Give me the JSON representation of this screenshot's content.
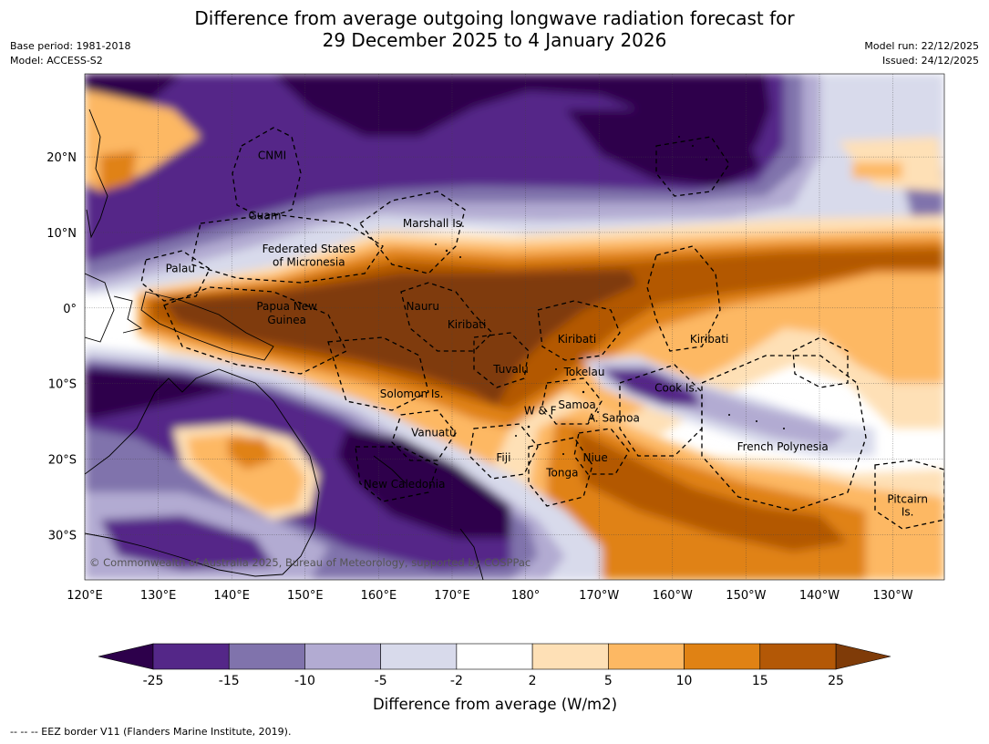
{
  "header": {
    "title_line1": "Difference from average outgoing longwave radiation forecast for",
    "title_line2": "29 December 2025 to 4 January 2026",
    "base_period": "Base period: 1981-2018",
    "model": "Model: ACCESS-S2",
    "model_run": "Model run: 22/12/2025",
    "issued": "Issued: 24/12/2025"
  },
  "map": {
    "lon_ticks": [
      "120°E",
      "130°E",
      "140°E",
      "150°E",
      "160°E",
      "170°E",
      "180°",
      "170°W",
      "160°W",
      "150°W",
      "140°W",
      "130°W"
    ],
    "lon_values": [
      120,
      130,
      140,
      150,
      160,
      170,
      180,
      190,
      200,
      210,
      220,
      230
    ],
    "lat_ticks": [
      "20°N",
      "10°N",
      "0°",
      "10°S",
      "20°S",
      "30°S"
    ],
    "lat_values": [
      20,
      10,
      0,
      -10,
      -20,
      -30
    ],
    "lon_range": [
      120,
      237
    ],
    "lat_range": [
      -36,
      31
    ],
    "grid": true,
    "copyright": "© Commonwealth of Australia 2025, Bureau of Meteorology, supported by COSPPac",
    "regions": [
      {
        "name": "CNMI",
        "lon": 145.5,
        "lat": 20.2
      },
      {
        "name": "Guam",
        "lon": 144.5,
        "lat": 12.2
      },
      {
        "name": "Marshall Is.",
        "lon": 167.5,
        "lat": 11.2
      },
      {
        "name": "Federated States",
        "lon": 150.5,
        "lat": 7.8
      },
      {
        "name": "of Micronesia",
        "lon": 150.5,
        "lat": 6.1
      },
      {
        "name": "Palau",
        "lon": 133,
        "lat": 5.2
      },
      {
        "name": "Papua New",
        "lon": 147.5,
        "lat": 0.2
      },
      {
        "name": "Guinea",
        "lon": 147.5,
        "lat": -1.6
      },
      {
        "name": "Nauru",
        "lon": 166,
        "lat": 0.2
      },
      {
        "name": "Kiribati",
        "lon": 172,
        "lat": -2.2
      },
      {
        "name": "Kiribati",
        "lon": 187,
        "lat": -4.1
      },
      {
        "name": "Kiribati",
        "lon": 205,
        "lat": -4.1
      },
      {
        "name": "Tuvalu",
        "lon": 178,
        "lat": -8.1
      },
      {
        "name": "Tokelau",
        "lon": 188,
        "lat": -8.5
      },
      {
        "name": "Cook Is.",
        "lon": 200.5,
        "lat": -10.6
      },
      {
        "name": "Solomon Is.",
        "lon": 164.5,
        "lat": -11.4
      },
      {
        "name": "Samoa",
        "lon": 187,
        "lat": -12.8
      },
      {
        "name": "W & F",
        "lon": 182,
        "lat": -13.6
      },
      {
        "name": "A. Samoa",
        "lon": 192,
        "lat": -14.6
      },
      {
        "name": "Vanuatu",
        "lon": 167.5,
        "lat": -16.5
      },
      {
        "name": "Fiji",
        "lon": 177,
        "lat": -19.8
      },
      {
        "name": "Niue",
        "lon": 189.5,
        "lat": -19.8
      },
      {
        "name": "French Polynesia",
        "lon": 215,
        "lat": -18.4
      },
      {
        "name": "Tonga",
        "lon": 185,
        "lat": -21.8
      },
      {
        "name": "New Caledonia",
        "lon": 163.5,
        "lat": -23.3
      },
      {
        "name": "Pitcairn",
        "lon": 232,
        "lat": -25.3
      },
      {
        "name": "Is.",
        "lon": 232,
        "lat": -27
      }
    ]
  },
  "legend": {
    "tick_labels": [
      "-25",
      "-15",
      "-10",
      "-5",
      "-2",
      "2",
      "5",
      "10",
      "15",
      "25"
    ],
    "colors": [
      "#2d004b",
      "#542788",
      "#8073ac",
      "#b2abd2",
      "#d8daeb",
      "#ffffff",
      "#fee0b6",
      "#fdb863",
      "#e08214",
      "#b35806",
      "#7f3b08"
    ],
    "label": "Difference from average (W/m2)"
  },
  "footnote": "--  --  -- EEZ border V11 (Flanders Marine Institute, 2019)."
}
